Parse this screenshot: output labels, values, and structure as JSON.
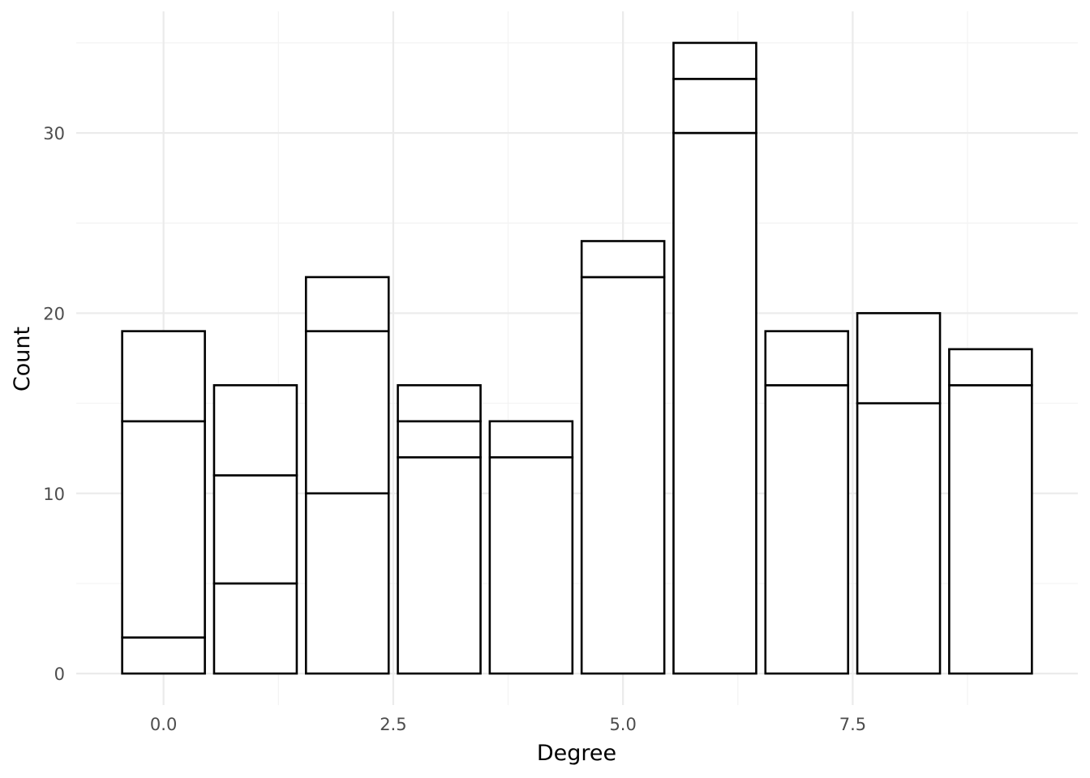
{
  "chart_data": {
    "type": "bar",
    "stacked": true,
    "xlabel": "Degree",
    "ylabel": "Count",
    "x": [
      0,
      1,
      2,
      3,
      4,
      5,
      6,
      7,
      8,
      9
    ],
    "segments": [
      [
        2,
        12,
        5
      ],
      [
        5,
        6,
        5
      ],
      [
        10,
        9,
        3
      ],
      [
        12,
        2,
        2
      ],
      [
        12,
        2
      ],
      [
        22,
        2
      ],
      [
        30,
        3,
        2
      ],
      [
        16,
        3
      ],
      [
        15,
        5
      ],
      [
        16,
        2
      ]
    ],
    "totals": [
      19,
      16,
      22,
      16,
      14,
      24,
      35,
      19,
      20,
      18
    ],
    "bar_width": 0.9,
    "fill_color": "#ffffff",
    "outline_color": "#000000",
    "xlim": [
      -0.95,
      9.95
    ],
    "ylim": [
      -1.75,
      36.75
    ],
    "x_ticks": [
      {
        "value": 0,
        "label": "0.0"
      },
      {
        "value": 2.5,
        "label": "2.5"
      },
      {
        "value": 5,
        "label": "5.0"
      },
      {
        "value": 7.5,
        "label": "7.5"
      }
    ],
    "x_minor_ticks": [
      1.25,
      3.75,
      6.25,
      8.75
    ],
    "y_ticks": [
      {
        "value": 0,
        "label": "0"
      },
      {
        "value": 10,
        "label": "10"
      },
      {
        "value": 20,
        "label": "20"
      },
      {
        "value": 30,
        "label": "30"
      }
    ],
    "y_minor_ticks": [
      5,
      15,
      25,
      35
    ],
    "grid": true,
    "legend": "none"
  }
}
